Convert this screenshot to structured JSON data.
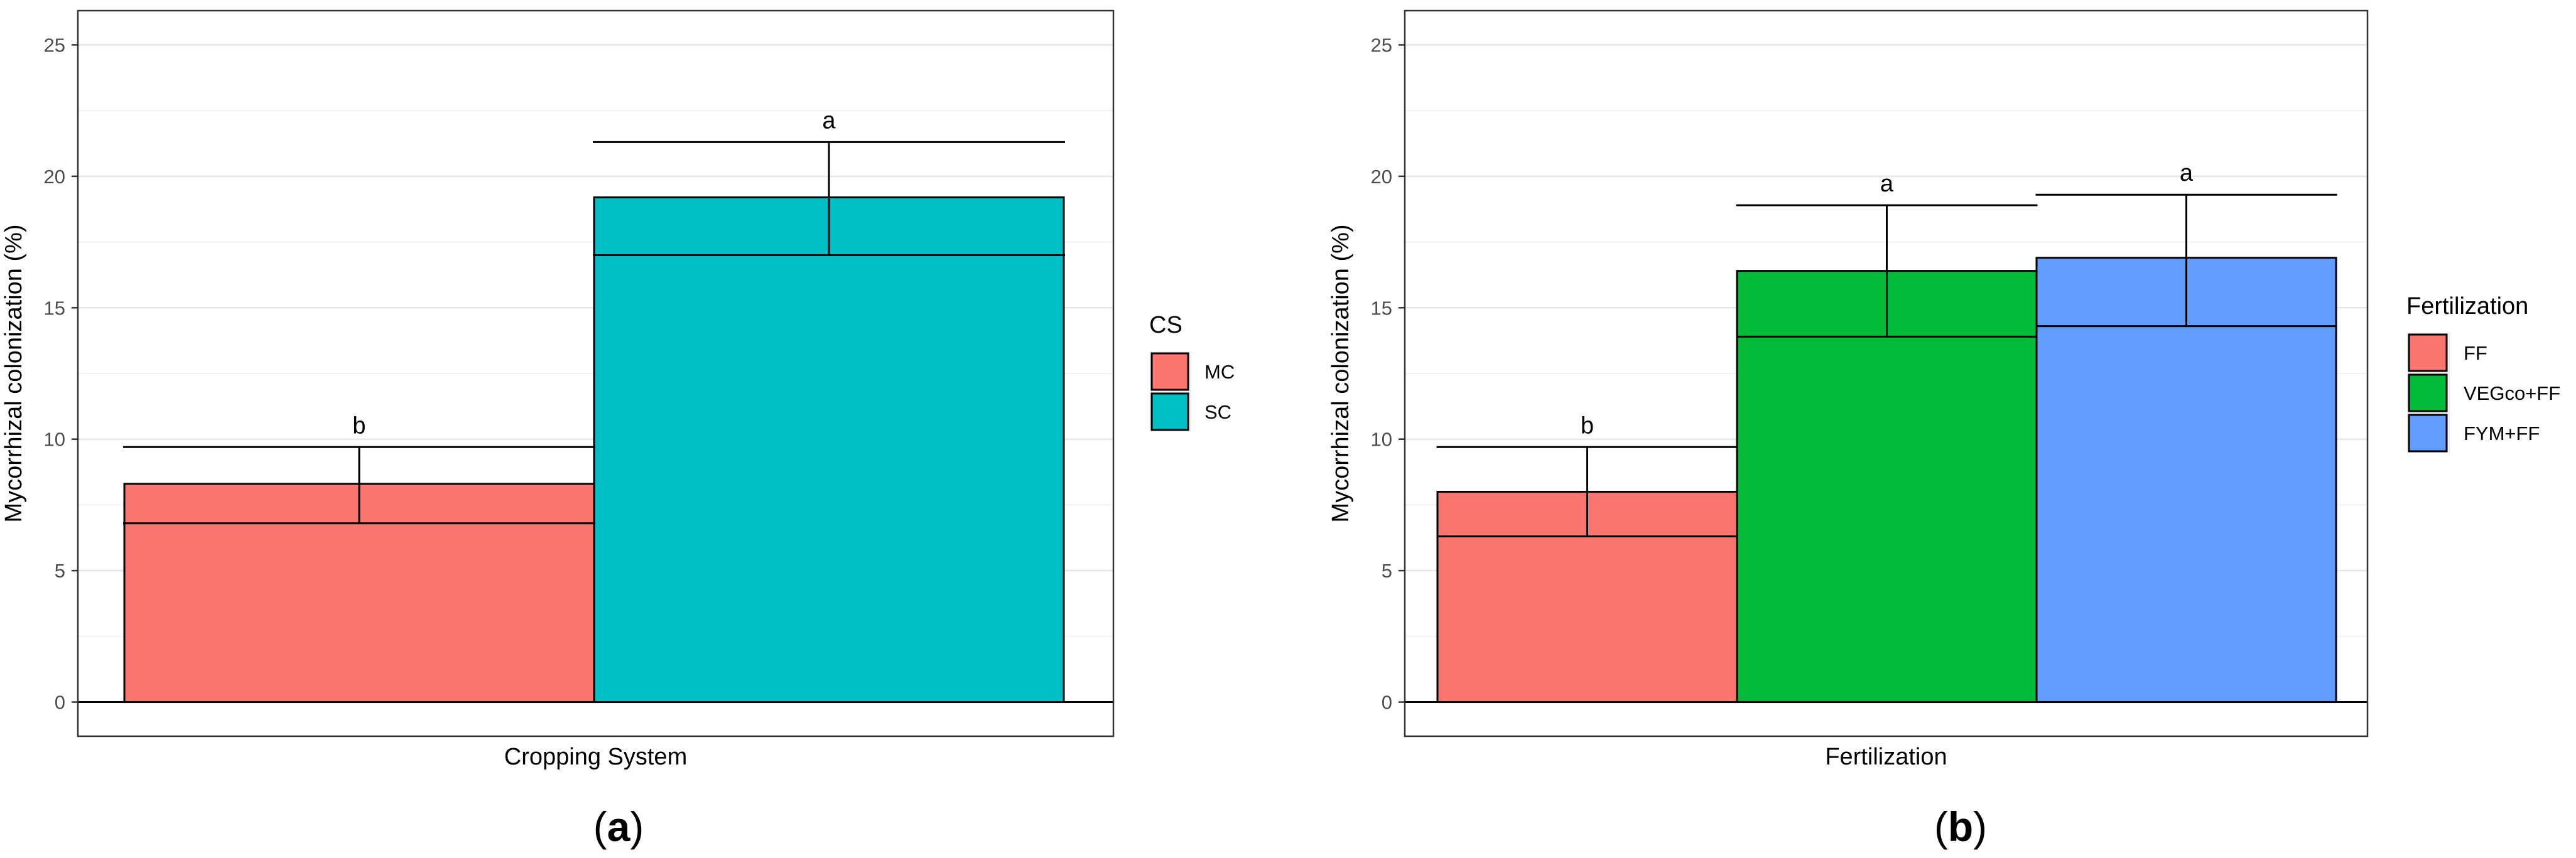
{
  "chart_data": [
    {
      "type": "bar",
      "panel_label": "(a)",
      "panel_label_parts": [
        "(",
        "a",
        ")"
      ],
      "xlabel": "Cropping System",
      "ylabel": "Mycorrhizal colonization (%)",
      "ylim": [
        -1.3,
        26.3
      ],
      "yticks": [
        0,
        5,
        10,
        15,
        20,
        25
      ],
      "grid": true,
      "categories": [
        "MC",
        "SC"
      ],
      "values": [
        8.3,
        19.2
      ],
      "error_low": [
        6.8,
        17.0
      ],
      "error_high": [
        9.7,
        21.3
      ],
      "significance_letters": [
        "b",
        "a"
      ],
      "colors": [
        "#F8766D",
        "#00BFC4"
      ],
      "legend": {
        "title": "CS",
        "entries": [
          "MC",
          "SC"
        ],
        "placement": "right"
      }
    },
    {
      "type": "bar",
      "panel_label": "(b)",
      "panel_label_parts": [
        "(",
        "b",
        ")"
      ],
      "xlabel": "Fertilization",
      "ylabel": "Mycorrhizal colonization (%)",
      "ylim": [
        -1.3,
        26.3
      ],
      "yticks": [
        0,
        5,
        10,
        15,
        20,
        25
      ],
      "grid": true,
      "categories": [
        "FF",
        "VEGco+FF",
        "FYM+FF"
      ],
      "values": [
        8.0,
        16.4,
        16.9
      ],
      "error_low": [
        6.3,
        13.9,
        14.3
      ],
      "error_high": [
        9.7,
        18.9,
        19.3
      ],
      "significance_letters": [
        "b",
        "a",
        "a"
      ],
      "colors": [
        "#F8766D",
        "#00BA38",
        "#619CFF"
      ],
      "legend": {
        "title": "Fertilization",
        "entries": [
          "FF",
          "VEGco+FF",
          "FYM+FF"
        ],
        "placement": "right"
      }
    }
  ]
}
